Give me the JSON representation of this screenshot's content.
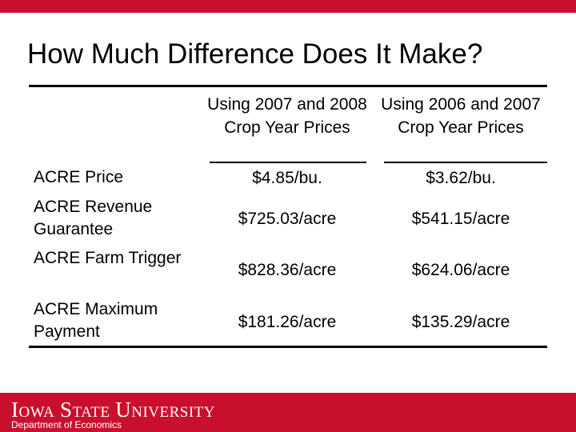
{
  "title": "How Much Difference Does It Make?",
  "columns": [
    "Using 2007 and 2008 Crop Year Prices",
    "Using 2006 and 2007 Crop Year Prices"
  ],
  "rows": [
    {
      "label": "ACRE Price",
      "values": [
        "$4.85/bu.",
        "$3.62/bu."
      ]
    },
    {
      "label": "ACRE Revenue Guarantee",
      "values": [
        "$725.03/acre",
        "$541.15/acre"
      ]
    },
    {
      "label": "ACRE Farm Trigger",
      "values": [
        "$828.36/acre",
        "$624.06/acre"
      ]
    },
    {
      "label": "ACRE Maximum Payment",
      "values": [
        "$181.26/acre",
        "$135.29/acre"
      ]
    }
  ],
  "footer": {
    "university": "Iowa State University",
    "department": "Department of Economics"
  },
  "colors": {
    "brand_red": "#c8102e",
    "text": "#000000"
  }
}
